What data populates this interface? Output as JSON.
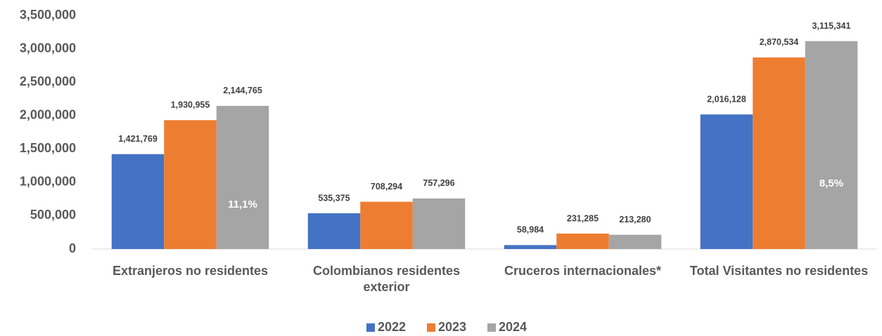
{
  "chart_data": {
    "type": "bar",
    "categories": [
      "Extranjeros no residentes",
      "Colombianos residentes exterior",
      "Cruceros internacionales*",
      "Total Visitantes no residentes"
    ],
    "series": [
      {
        "name": "2022",
        "color": "#4472c4",
        "values": [
          1421769,
          535375,
          58984,
          2016128
        ],
        "value_labels": [
          "1,421,769",
          "535,375",
          "58,984",
          "2,016,128"
        ]
      },
      {
        "name": "2023",
        "color": "#ed7d31",
        "values": [
          1930955,
          708294,
          231285,
          2870534
        ],
        "value_labels": [
          "1,930,955",
          "708,294",
          "231,285",
          "2,870,534"
        ]
      },
      {
        "name": "2024",
        "color": "#a5a5a5",
        "values": [
          2144765,
          757296,
          213280,
          3115341
        ],
        "value_labels": [
          "2,144,765",
          "757,296",
          "213,280",
          "3,115,341"
        ]
      }
    ],
    "annotations": [
      "11,1%",
      "8,5%"
    ],
    "ylim": [
      0,
      3500000
    ],
    "yticks": [
      0,
      {
        "value": 500000,
        "label": "500,000"
      },
      {
        "value": 1000000,
        "label": "1,000,000"
      },
      {
        "value": 1500000,
        "label": "1,500,000"
      },
      {
        "value": 2000000,
        "label": "2,000,000"
      },
      {
        "value": 2500000,
        "label": "2,500,000"
      },
      {
        "value": 3000000,
        "label": "3,000,000"
      },
      {
        "value": 3500000,
        "label": "3,500,000"
      }
    ],
    "grid": false,
    "legend": "bottom"
  }
}
